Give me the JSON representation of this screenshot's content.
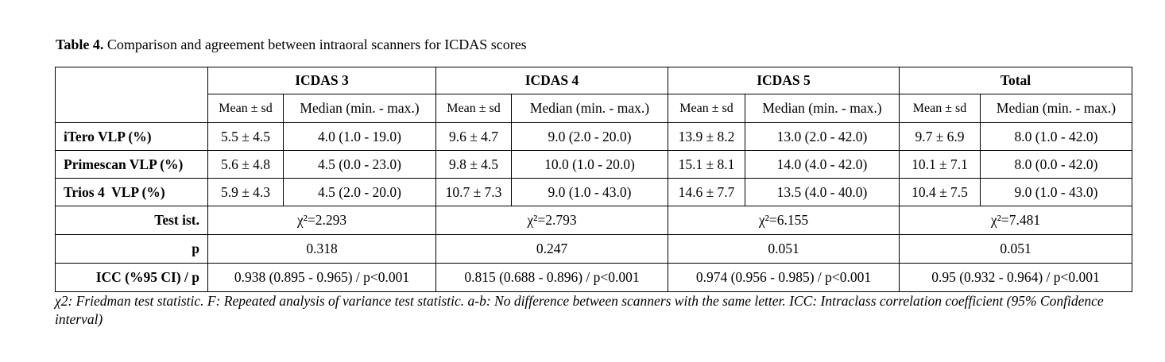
{
  "caption": {
    "label": "Table 4.",
    "text": " Comparison and agreement between intraoral scanners for ICDAS scores"
  },
  "groups": [
    "ICDAS 3",
    "ICDAS 4",
    "ICDAS 5",
    "Total"
  ],
  "subheaders": {
    "mean_sd": "Mean ± sd",
    "median": "Median (min. - max.)"
  },
  "rows": [
    {
      "label": "iTero VLP (%)",
      "cells": [
        "5.5 ± 4.5",
        "4.0 (1.0 - 19.0)",
        "9.6 ± 4.7",
        "9.0 (2.0 - 20.0)",
        "13.9 ± 8.2",
        "13.0 (2.0 - 42.0)",
        "9.7 ± 6.9",
        "8.0 (1.0 - 42.0)"
      ]
    },
    {
      "label": "Primescan VLP (%)",
      "cells": [
        "5.6 ± 4.8",
        "4.5 (0.0 - 23.0)",
        "9.8 ± 4.5",
        "10.0 (1.0 - 20.0)",
        "15.1 ± 8.1",
        "14.0 (4.0 - 42.0)",
        "10.1 ± 7.1",
        "8.0 (0.0 - 42.0)"
      ]
    },
    {
      "label": "Trios 4  VLP (%)",
      "cells": [
        "5.9 ± 4.3",
        "4.5 (2.0 - 20.0)",
        "10.7 ± 7.3",
        "9.0 (1.0 - 43.0)",
        "14.6 ± 7.7",
        "13.5 (4.0 - 40.0)",
        "10.4 ± 7.5",
        "9.0 (1.0 - 43.0)"
      ]
    }
  ],
  "test_row": {
    "label": "Test ist.",
    "values": [
      "χ²=2.293",
      "χ²=2.793",
      "χ²=6.155",
      "χ²=7.481"
    ]
  },
  "p_row": {
    "label": "p",
    "values": [
      "0.318",
      "0.247",
      "0.051",
      "0.051"
    ]
  },
  "icc_row": {
    "label": "ICC (%95 CI) / p",
    "values": [
      "0.938 (0.895 - 0.965) / p<0.001",
      "0.815 (0.688 - 0.896) / p<0.001",
      "0.974 (0.956 - 0.985) / p<0.001",
      "0.95 (0.932 - 0.964) / p<0.001"
    ]
  },
  "footnote": "χ2: Friedman test statistic. F: Repeated analysis of variance test statistic. a-b: No difference between scanners with the same letter. ICC: Intraclass correlation coefficient (95% Confidence interval)"
}
